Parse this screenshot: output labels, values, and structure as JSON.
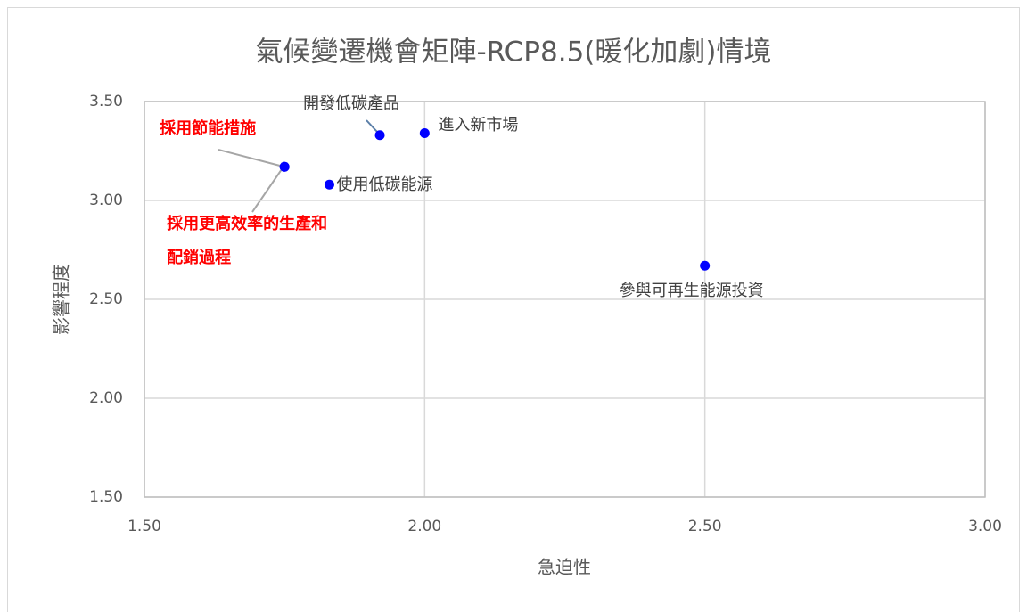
{
  "chart_data": {
    "type": "scatter",
    "title": "氣候變遷機會矩陣-RCP8.5(暖化加劇)情境",
    "x_label": "急迫性",
    "y_label": "影響程度",
    "x": [
      1.75,
      1.75,
      1.92,
      2.0,
      1.83,
      2.5
    ],
    "values": [
      3.17,
      3.17,
      3.33,
      3.34,
      3.08,
      2.67
    ],
    "point_labels": [
      "採用節能措施",
      "採用更高效率的生產和配銷過程",
      "開發低碳產品",
      "進入新市場",
      "使用低碳能源",
      "參與可再生能源投資"
    ],
    "label_colors": [
      "#ff0000",
      "#ff0000",
      "#404040",
      "#404040",
      "#404040",
      "#404040"
    ],
    "color": "#0000ff",
    "xlim": [
      1.5,
      3.0
    ],
    "xticks": [
      {
        "value": 1.5,
        "label": "1.50"
      },
      {
        "value": 2.0,
        "label": "2.00"
      },
      {
        "value": 2.5,
        "label": "2.50"
      },
      {
        "value": 3.0,
        "label": "3.00"
      }
    ],
    "ylim": [
      1.5,
      3.5
    ],
    "yticks": [
      {
        "value": 1.5,
        "label": "1.50"
      },
      {
        "value": 2.0,
        "label": "2.00"
      },
      {
        "value": 2.5,
        "label": "2.50"
      },
      {
        "value": 3.0,
        "label": "3.00"
      },
      {
        "value": 3.5,
        "label": "3.50"
      }
    ],
    "grid": true
  }
}
